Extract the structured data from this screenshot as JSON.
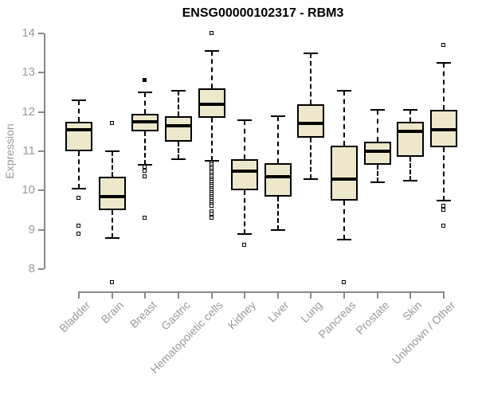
{
  "chart_data": {
    "type": "boxplot",
    "title": "ENSG00000102317 - RBM3",
    "xlabel": "",
    "ylabel": "Expression",
    "ylim": [
      8,
      14
    ],
    "yticks": [
      8,
      9,
      10,
      11,
      12,
      13,
      14
    ],
    "grid": false,
    "categories": [
      "Bladder",
      "Brain",
      "Breast",
      "Gastric",
      "Hematopoietic cells",
      "Kidney",
      "Liver",
      "Lung",
      "Pancreas",
      "Prostate",
      "Skin",
      "Unknown / Other"
    ],
    "series": [
      {
        "category": "Bladder",
        "whisker_low": 10.05,
        "q1": 11.0,
        "median": 11.55,
        "q3": 11.75,
        "whisker_high": 12.3,
        "outliers": [
          9.8,
          9.1,
          8.9
        ],
        "outliers_filled": []
      },
      {
        "category": "Brain",
        "whisker_low": 8.8,
        "q1": 9.5,
        "median": 9.85,
        "q3": 10.35,
        "whisker_high": 11.0,
        "outliers": [
          11.7,
          7.65
        ],
        "outliers_filled": []
      },
      {
        "category": "Breast",
        "whisker_low": 10.65,
        "q1": 11.5,
        "median": 11.75,
        "q3": 11.95,
        "whisker_high": 12.5,
        "outliers": [
          10.6,
          10.5,
          10.35,
          9.3
        ],
        "outliers_filled": [
          12.8
        ]
      },
      {
        "category": "Gastric",
        "whisker_low": 10.8,
        "q1": 11.25,
        "median": 11.65,
        "q3": 11.9,
        "whisker_high": 12.55,
        "outliers": [],
        "outliers_filled": []
      },
      {
        "category": "Hematopoietic cells",
        "whisker_low": 10.75,
        "q1": 11.85,
        "median": 12.2,
        "q3": 12.6,
        "whisker_high": 13.55,
        "outliers": [
          14.0,
          10.7,
          10.65,
          10.6,
          10.55,
          10.5,
          10.45,
          10.4,
          10.35,
          10.3,
          10.25,
          10.2,
          10.15,
          10.1,
          10.05,
          10.0,
          9.95,
          9.9,
          9.85,
          9.8,
          9.75,
          9.7,
          9.65,
          9.6,
          9.45,
          9.4,
          9.3
        ],
        "outliers_filled": []
      },
      {
        "category": "Kidney",
        "whisker_low": 8.9,
        "q1": 10.0,
        "median": 10.5,
        "q3": 10.8,
        "whisker_high": 11.8,
        "outliers": [
          8.6
        ],
        "outliers_filled": []
      },
      {
        "category": "Liver",
        "whisker_low": 9.0,
        "q1": 9.85,
        "median": 10.35,
        "q3": 10.7,
        "whisker_high": 11.9,
        "outliers": [],
        "outliers_filled": []
      },
      {
        "category": "Lung",
        "whisker_low": 10.3,
        "q1": 11.35,
        "median": 11.7,
        "q3": 12.2,
        "whisker_high": 13.5,
        "outliers": [],
        "outliers_filled": []
      },
      {
        "category": "Pancreas",
        "whisker_low": 8.75,
        "q1": 9.75,
        "median": 10.3,
        "q3": 11.15,
        "whisker_high": 12.55,
        "outliers": [
          7.65
        ],
        "outliers_filled": []
      },
      {
        "category": "Prostate",
        "whisker_low": 10.2,
        "q1": 10.65,
        "median": 11.0,
        "q3": 11.25,
        "whisker_high": 12.05,
        "outliers": [],
        "outliers_filled": []
      },
      {
        "category": "Skin",
        "whisker_low": 10.25,
        "q1": 10.85,
        "median": 11.5,
        "q3": 11.75,
        "whisker_high": 12.05,
        "outliers": [],
        "outliers_filled": []
      },
      {
        "category": "Unknown / Other",
        "whisker_low": 9.75,
        "q1": 11.1,
        "median": 11.55,
        "q3": 12.05,
        "whisker_high": 13.25,
        "outliers": [
          13.7,
          9.6,
          9.5,
          9.1
        ],
        "outliers_filled": []
      }
    ]
  },
  "colors": {
    "box_fill": "#EDE8CB",
    "box_border": "#000000",
    "median": "#000000",
    "axis_line": "#888888",
    "axis_text": "#999999",
    "title_text": "#000000",
    "background": "#FFFFFF"
  }
}
